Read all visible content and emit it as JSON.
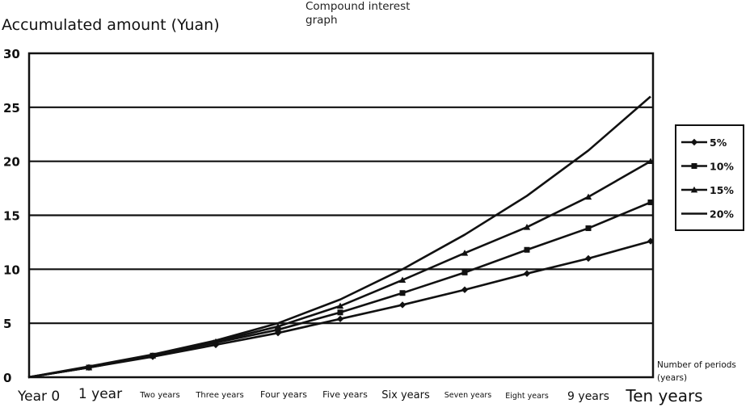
{
  "chart_data": {
    "type": "line",
    "title": "Compound interest graph",
    "ylabel": "Accumulated amount (Yuan)",
    "xlabel": "Number of periods (years)",
    "ylim": [
      0,
      30
    ],
    "yticks": [
      "0",
      "5",
      "10",
      "15",
      "20",
      "25",
      "30"
    ],
    "categories": [
      "Year 0",
      "1 year",
      "Two years",
      "Three years",
      "Four years",
      "Five years",
      "Six years",
      "Seven years",
      "Eight years",
      "9 years",
      "Ten years"
    ],
    "grid": true,
    "legend_position": "right",
    "series": [
      {
        "name": "5%",
        "marker": "diamond",
        "values": [
          0,
          0.9,
          1.9,
          3.0,
          4.1,
          5.4,
          6.7,
          8.1,
          9.6,
          11.0,
          12.6
        ]
      },
      {
        "name": "10%",
        "marker": "square",
        "values": [
          0,
          0.9,
          2.0,
          3.2,
          4.4,
          6.0,
          7.8,
          9.7,
          11.8,
          13.8,
          16.2
        ]
      },
      {
        "name": "15%",
        "marker": "triangle",
        "values": [
          0,
          0.9,
          2.0,
          3.3,
          4.7,
          6.6,
          9.0,
          11.5,
          13.9,
          16.7,
          20.0
        ]
      },
      {
        "name": "20%",
        "marker": "none",
        "values": [
          0,
          1.0,
          2.1,
          3.4,
          5.0,
          7.2,
          10.0,
          13.2,
          16.8,
          21.0,
          26.0
        ]
      }
    ]
  }
}
